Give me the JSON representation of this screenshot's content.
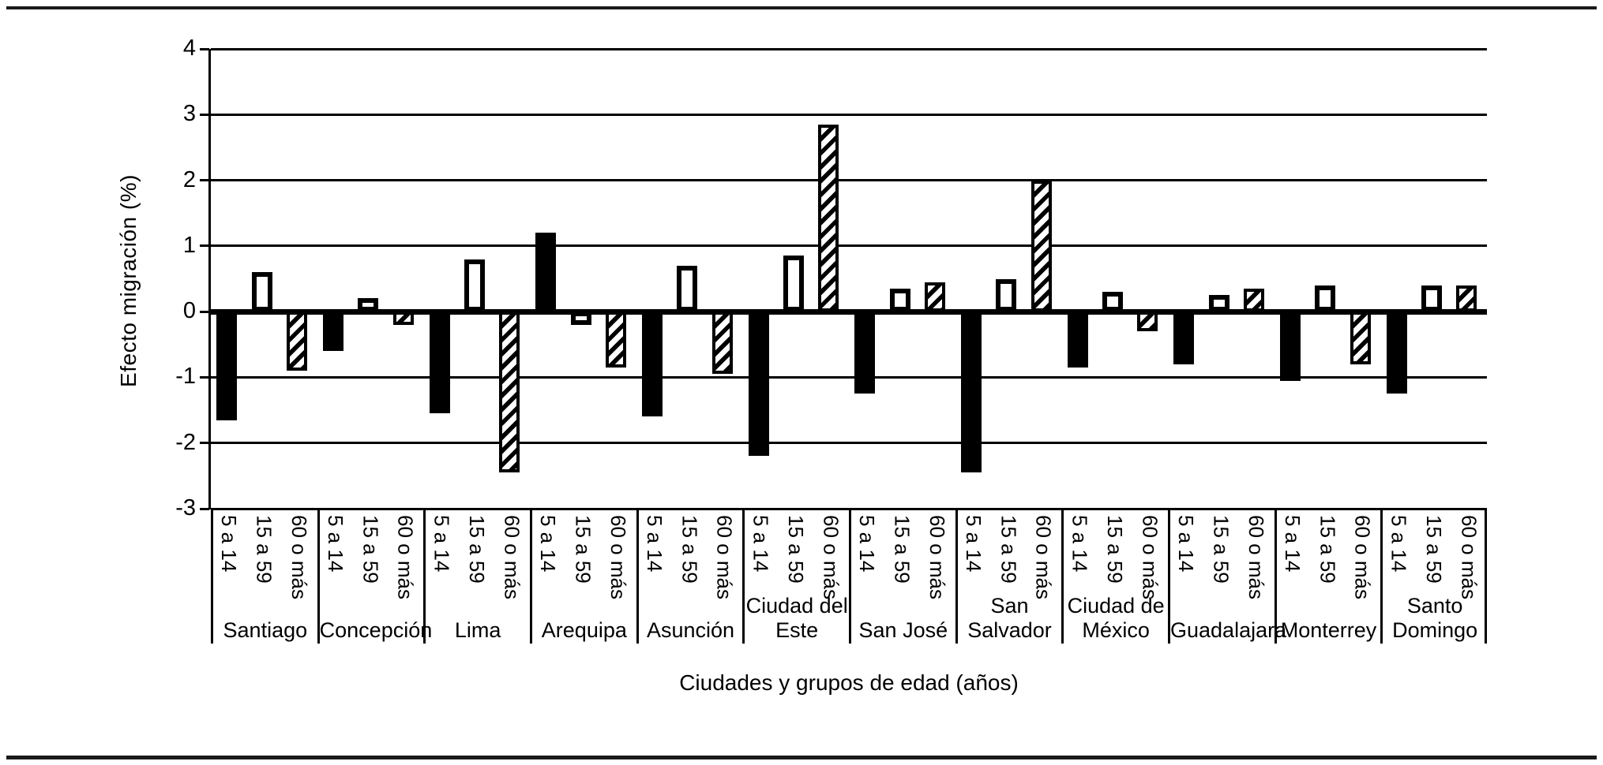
{
  "chart_data": {
    "type": "bar",
    "title": "",
    "ylabel": "Efecto migración (%)",
    "xlabel": "Ciudades y grupos de edad (años)",
    "ylim": [
      -3,
      4
    ],
    "y_ticks": [
      4,
      3,
      2,
      1,
      0,
      -1,
      -2,
      -3
    ],
    "grid": "horizontal",
    "legend": "none",
    "categories": [
      "Santiago",
      "Concepción",
      "Lima",
      "Arequipa",
      "Asunción",
      "Ciudad del Este",
      "San José",
      "San Salvador",
      "Ciudad de México",
      "Guadalajara",
      "Monterrey",
      "Santo Domingo"
    ],
    "age_groups": [
      "5 a 14",
      "15 a 59",
      "60 o más"
    ],
    "series": [
      {
        "name": "5 a 14",
        "style": "solid-black",
        "values": [
          -1.65,
          -0.6,
          -1.55,
          1.2,
          -1.6,
          -2.2,
          -1.25,
          -2.45,
          -0.85,
          -0.8,
          -1.05,
          -1.25
        ]
      },
      {
        "name": "15 a 59",
        "style": "white-outline",
        "values": [
          0.6,
          0.2,
          0.8,
          -0.2,
          0.7,
          0.85,
          0.35,
          0.5,
          0.3,
          0.25,
          0.4,
          0.4
        ]
      },
      {
        "name": "60 o más",
        "style": "diagonal-hatch",
        "values": [
          -0.9,
          -0.2,
          -2.45,
          -0.85,
          -0.95,
          2.85,
          0.45,
          2.0,
          -0.3,
          0.35,
          -0.8,
          0.4
        ]
      }
    ],
    "colors": {
      "bar_fill": "#000000",
      "bar_outline": "#000000",
      "hatch_pattern": "diagonal-stripes-45deg",
      "background": "#ffffff",
      "gridline": "#000000"
    }
  }
}
